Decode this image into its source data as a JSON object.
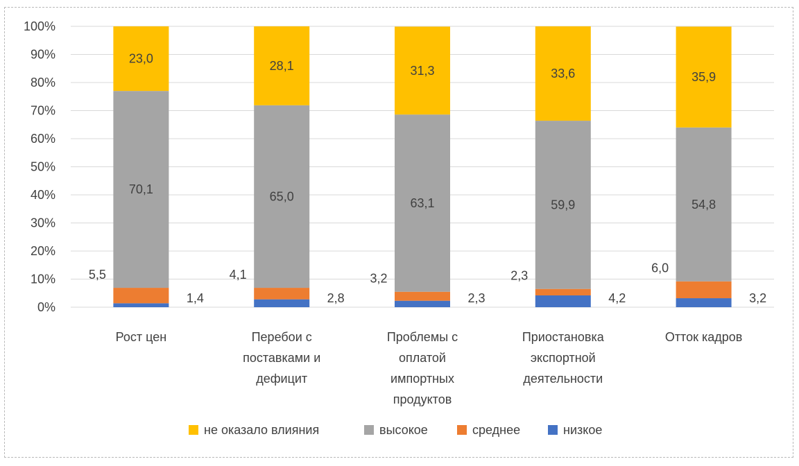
{
  "chart_data": {
    "type": "bar",
    "stacked": true,
    "title": "",
    "xlabel": "",
    "ylabel": "",
    "ylim": [
      0,
      100
    ],
    "y_ticks": [
      "0%",
      "10%",
      "20%",
      "30%",
      "40%",
      "50%",
      "60%",
      "70%",
      "80%",
      "90%",
      "100%"
    ],
    "grid": true,
    "legend_position": "bottom",
    "categories": [
      [
        "Рост цен"
      ],
      [
        "Перебои с",
        "поставками и",
        "дефицит"
      ],
      [
        "Проблемы с",
        "оплатой",
        "импортных",
        "продуктов"
      ],
      [
        "Приостановка",
        "экспортной",
        "деятельности"
      ],
      [
        "Отток кадров"
      ]
    ],
    "series": [
      {
        "name": "низкое",
        "color": "#4472c4",
        "values": [
          1.4,
          2.8,
          2.3,
          4.2,
          3.2
        ],
        "labels": [
          "1,4",
          "2,8",
          "2,3",
          "4,2",
          "3,2"
        ]
      },
      {
        "name": "среднее",
        "color": "#ed7d31",
        "values": [
          5.5,
          4.1,
          3.2,
          2.3,
          6.0
        ],
        "labels": [
          "5,5",
          "4,1",
          "3,2",
          "2,3",
          "6,0"
        ]
      },
      {
        "name": "высокое",
        "color": "#a5a5a5",
        "values": [
          70.1,
          65.0,
          63.1,
          59.9,
          54.8
        ],
        "labels": [
          "70,1",
          "65,0",
          "63,1",
          "59,9",
          "54,8"
        ]
      },
      {
        "name": "не оказало влияния",
        "color": "#ffc000",
        "values": [
          23.0,
          28.1,
          31.3,
          33.6,
          35.9
        ],
        "labels": [
          "23,0",
          "28,1",
          "31,3",
          "33,6",
          "35,9"
        ]
      }
    ],
    "legend_order": [
      "не оказало влияния",
      "высокое",
      "среднее",
      "низкое"
    ]
  }
}
